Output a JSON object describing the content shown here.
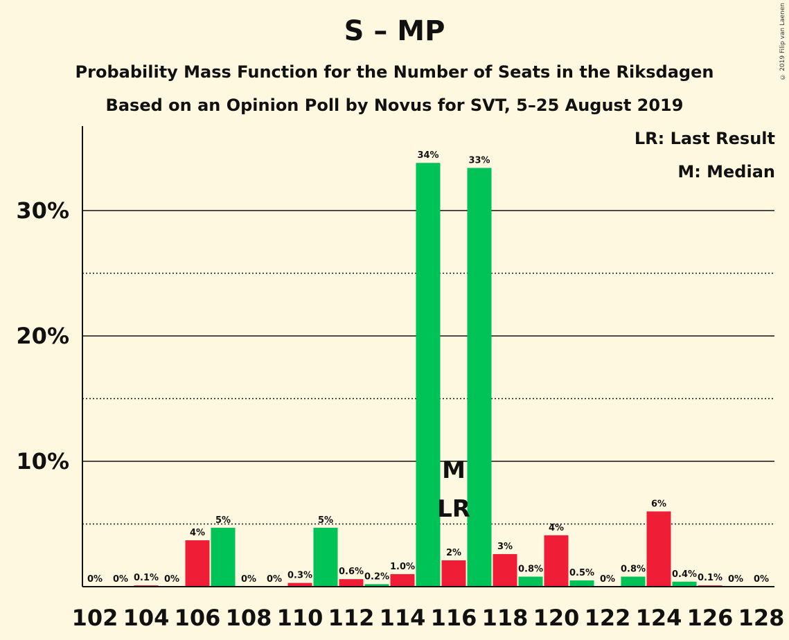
{
  "header": {
    "title": "S – MP",
    "subtitle1": "Probability Mass Function for the Number of Seats in the Riksdagen",
    "subtitle2": "Based on an Opinion Poll by Novus for SVT, 5–25 August 2019",
    "copyright": "© 2019 Filip van Laenen"
  },
  "legend": {
    "last_result": "LR: Last Result",
    "median": "M: Median"
  },
  "colors": {
    "red": "#f01d36",
    "green": "#00c358",
    "background": "#fff8e1"
  },
  "chart_data": {
    "type": "bar",
    "title": "S – MP",
    "xlabel": "",
    "ylabel": "",
    "ylim": [
      0,
      37
    ],
    "yticks": [
      {
        "value": 10,
        "label": "10%"
      },
      {
        "value": 20,
        "label": "20%"
      },
      {
        "value": 30,
        "label": "30%"
      }
    ],
    "dotted_gridlines": [
      5,
      15,
      25
    ],
    "x_tick_labels": [
      "102",
      "104",
      "106",
      "108",
      "110",
      "112",
      "114",
      "116",
      "118",
      "120",
      "122",
      "124",
      "126",
      "128"
    ],
    "bars": [
      {
        "seats": 102,
        "value": 0,
        "label": "0%",
        "color": "red"
      },
      {
        "seats": 103,
        "value": 0,
        "label": "0%",
        "color": "green"
      },
      {
        "seats": 104,
        "value": 0.1,
        "label": "0.1%",
        "color": "red"
      },
      {
        "seats": 105,
        "value": 0,
        "label": "0%",
        "color": "green"
      },
      {
        "seats": 106,
        "value": 3.7,
        "label": "4%",
        "color": "red"
      },
      {
        "seats": 107,
        "value": 4.7,
        "label": "5%",
        "color": "green"
      },
      {
        "seats": 108,
        "value": 0,
        "label": "0%",
        "color": "red"
      },
      {
        "seats": 109,
        "value": 0,
        "label": "0%",
        "color": "green"
      },
      {
        "seats": 110,
        "value": 0.3,
        "label": "0.3%",
        "color": "red"
      },
      {
        "seats": 111,
        "value": 4.7,
        "label": "5%",
        "color": "green"
      },
      {
        "seats": 112,
        "value": 0.6,
        "label": "0.6%",
        "color": "red"
      },
      {
        "seats": 113,
        "value": 0.2,
        "label": "0.2%",
        "color": "green"
      },
      {
        "seats": 114,
        "value": 1.0,
        "label": "1.0%",
        "color": "red"
      },
      {
        "seats": 115,
        "value": 33.8,
        "label": "34%",
        "color": "green"
      },
      {
        "seats": 116,
        "value": 2.1,
        "label": "2%",
        "color": "red"
      },
      {
        "seats": 117,
        "value": 33.4,
        "label": "33%",
        "color": "green"
      },
      {
        "seats": 118,
        "value": 2.6,
        "label": "3%",
        "color": "red"
      },
      {
        "seats": 119,
        "value": 0.8,
        "label": "0.8%",
        "color": "green"
      },
      {
        "seats": 120,
        "value": 4.1,
        "label": "4%",
        "color": "red"
      },
      {
        "seats": 121,
        "value": 0.5,
        "label": "0.5%",
        "color": "green"
      },
      {
        "seats": 122,
        "value": 0,
        "label": "0%",
        "color": "red"
      },
      {
        "seats": 123,
        "value": 0.8,
        "label": "0.8%",
        "color": "green"
      },
      {
        "seats": 124,
        "value": 6.0,
        "label": "6%",
        "color": "red"
      },
      {
        "seats": 125,
        "value": 0.4,
        "label": "0.4%",
        "color": "green"
      },
      {
        "seats": 126,
        "value": 0.1,
        "label": "0.1%",
        "color": "red"
      },
      {
        "seats": 127,
        "value": 0,
        "label": "0%",
        "color": "green"
      },
      {
        "seats": 128,
        "value": 0,
        "label": "0%",
        "color": "red"
      }
    ],
    "median": {
      "seats": 116,
      "label": "M"
    },
    "last_result": {
      "seats": 116,
      "label": "LR"
    }
  }
}
